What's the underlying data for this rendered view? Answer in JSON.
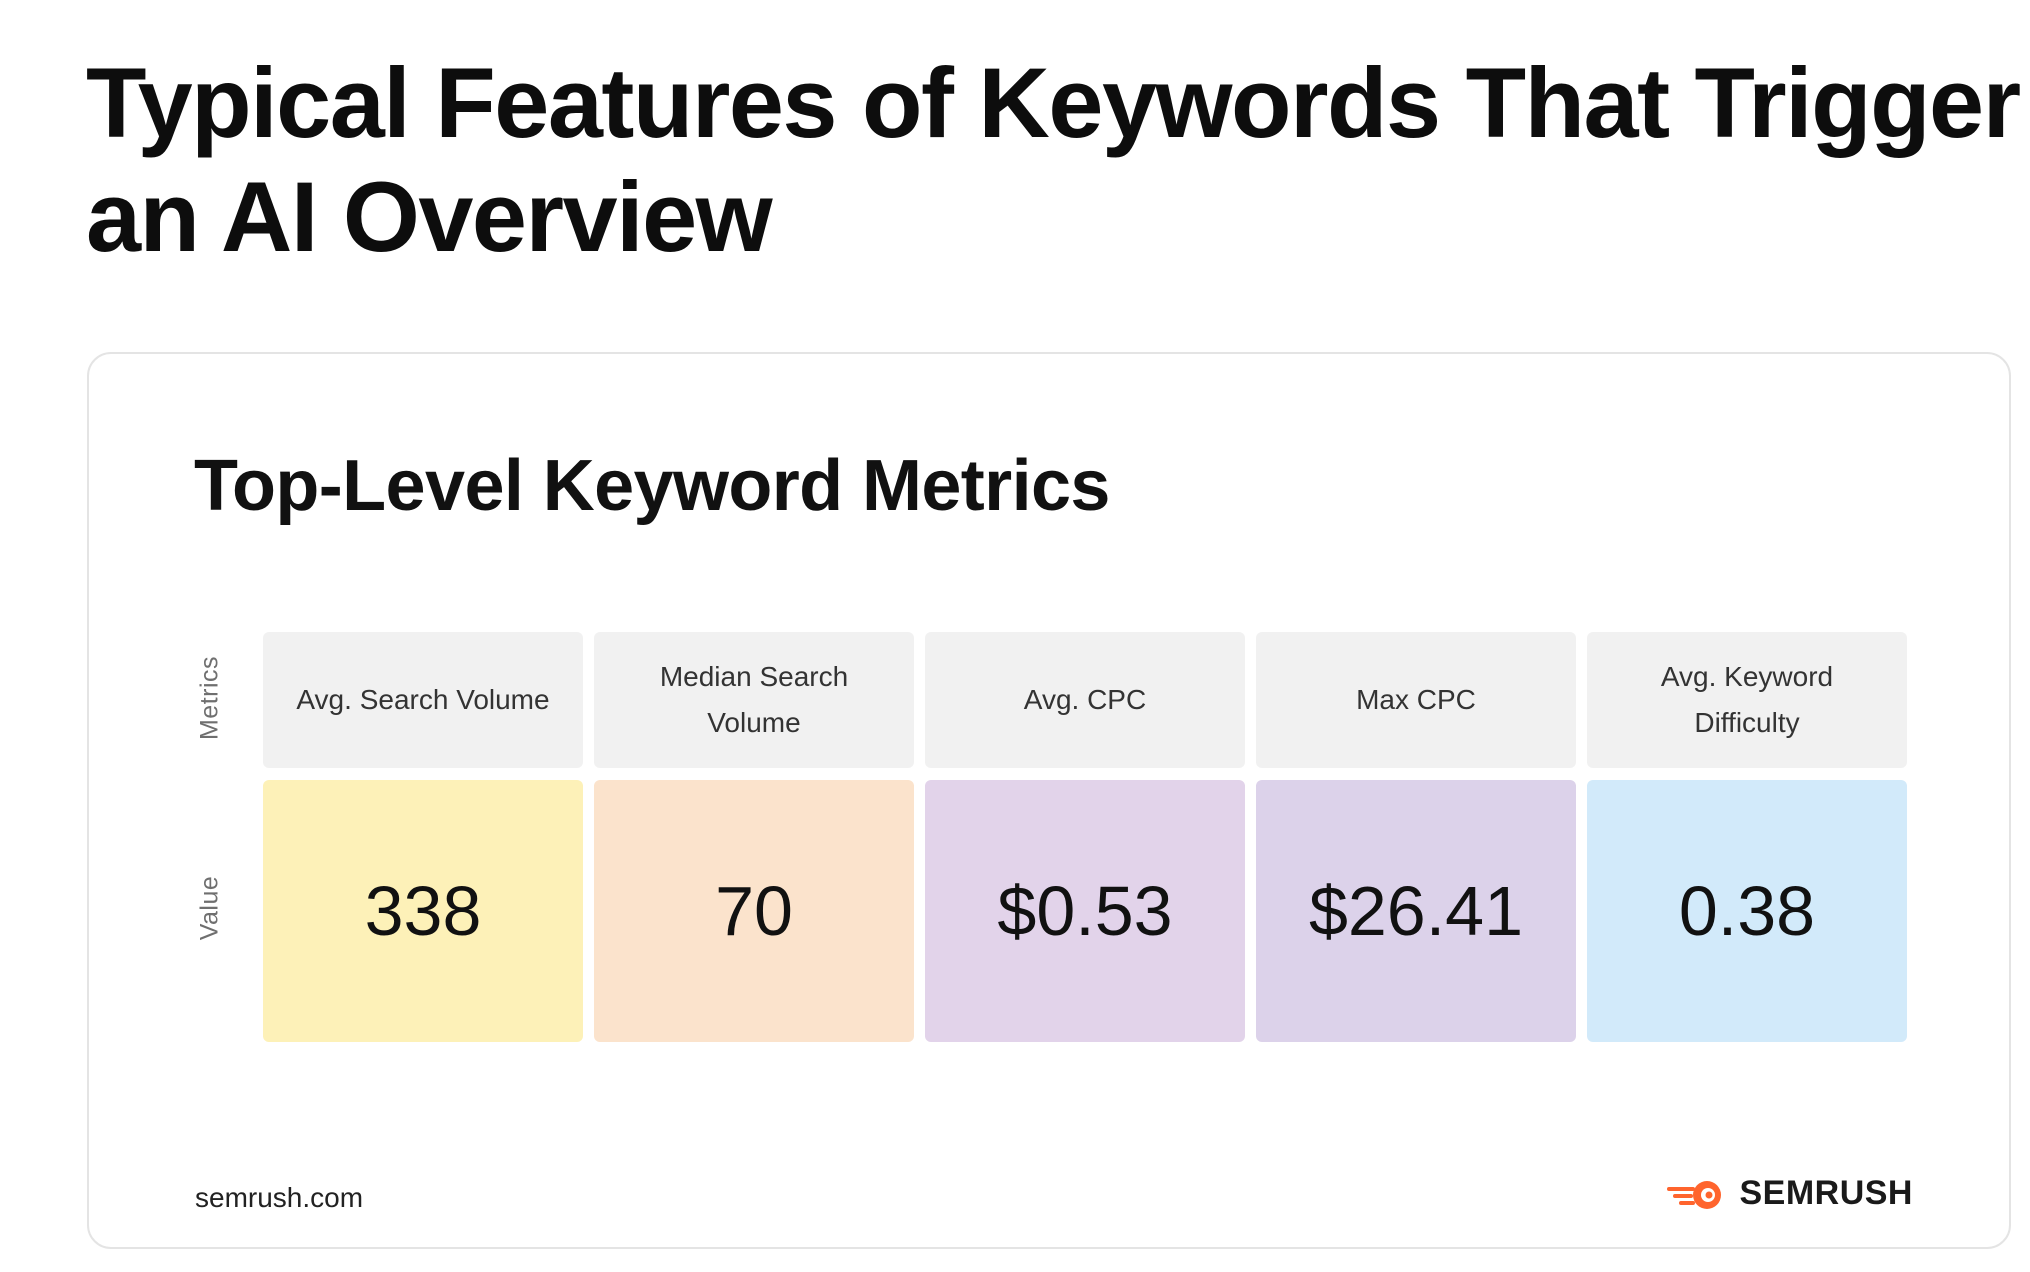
{
  "page": {
    "title": "Typical Features of Keywords That Trigger an AI Overview"
  },
  "card": {
    "source": "semrush.com",
    "brand": "SEMRUSH"
  },
  "chart_data": {
    "type": "table",
    "title": "Top-Level Keyword Metrics",
    "row_labels": [
      "Metrics",
      "Value"
    ],
    "columns": [
      {
        "metric": "Avg. Search Volume",
        "value": "338",
        "color": "#fdf1b8"
      },
      {
        "metric": "Median Search Volume",
        "value": "70",
        "color": "#fbe3cc"
      },
      {
        "metric": "Avg. CPC",
        "value": "$0.53",
        "color": "#e2d3ea"
      },
      {
        "metric": "Max CPC",
        "value": "$26.41",
        "color": "#dcd2ea"
      },
      {
        "metric": "Avg. Keyword Difficulty",
        "value": "0.38",
        "color": "#d2eafa"
      }
    ]
  },
  "colors": {
    "header_cell": "#f1f1f1",
    "brand_accent": "#ff642d"
  }
}
